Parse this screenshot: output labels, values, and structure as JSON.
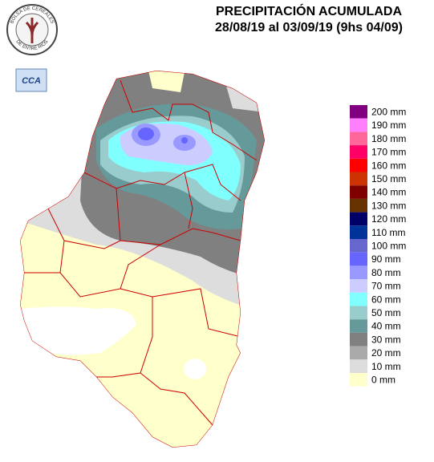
{
  "header": {
    "title": "PRECIPITACIÓN ACUMULADA",
    "subtitle": "28/08/19 al 03/09/19 (9hs 04/09)"
  },
  "logo": {
    "top_text": "BOLSA DE CEREALES",
    "bottom_text": "DE ENTRE RIOS",
    "badge": "CCA"
  },
  "legend": [
    {
      "label": "200 mm",
      "color": "#800080"
    },
    {
      "label": "190 mm",
      "color": "#ff80ff"
    },
    {
      "label": "180 mm",
      "color": "#ff6699"
    },
    {
      "label": "170 mm",
      "color": "#ff0066"
    },
    {
      "label": "160 mm",
      "color": "#ff0000"
    },
    {
      "label": "150 mm",
      "color": "#cc3300"
    },
    {
      "label": "140 mm",
      "color": "#800000"
    },
    {
      "label": "130 mm",
      "color": "#663300"
    },
    {
      "label": "120 mm",
      "color": "#000066"
    },
    {
      "label": "110 mm",
      "color": "#003399"
    },
    {
      "label": "100 mm",
      "color": "#6666cc"
    },
    {
      "label": "90 mm",
      "color": "#6666ff"
    },
    {
      "label": "80 mm",
      "color": "#9999ff"
    },
    {
      "label": "70 mm",
      "color": "#ccccff"
    },
    {
      "label": "60 mm",
      "color": "#80ffff"
    },
    {
      "label": "50 mm",
      "color": "#99cccc"
    },
    {
      "label": "40 mm",
      "color": "#669999"
    },
    {
      "label": "30 mm",
      "color": "#808080"
    },
    {
      "label": "20 mm",
      "color": "#aaaaaa"
    },
    {
      "label": "10 mm",
      "color": "#dddddd"
    },
    {
      "label": "0 mm",
      "color": "#ffffcc"
    }
  ]
}
